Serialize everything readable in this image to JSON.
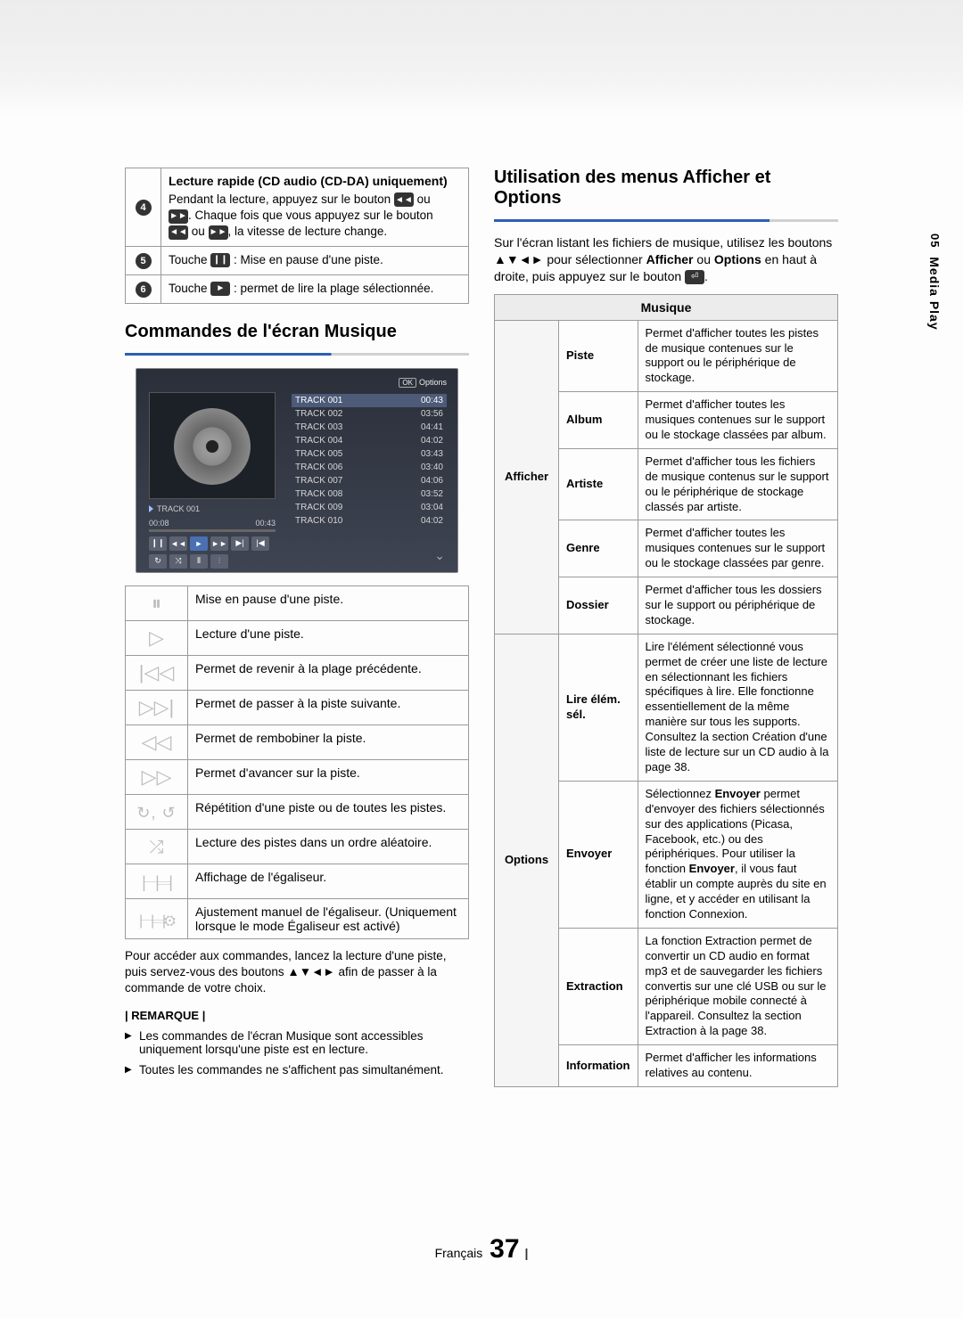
{
  "side": {
    "num": "05",
    "txt": "Media Play"
  },
  "top_table": {
    "r4": {
      "title": "Lecture rapide (CD audio (CD-DA) uniquement)",
      "l1a": "Pendant la lecture, appuyez sur le bouton ",
      "l1b": " ou ",
      "l2a": ". Chaque fois que vous appuyez sur le bouton ",
      "l3a": " ou ",
      "l3b": ", la vitesse de lecture change."
    },
    "r5": {
      "a": "Touche ",
      "b": " : Mise en pause d'une piste."
    },
    "r6": {
      "a": "Touche ",
      "b": " : permet de lire la plage sélectionnée."
    }
  },
  "h_left": "Commandes de l'écran Musique",
  "player": {
    "options": "Options",
    "now": "TRACK 001",
    "t_cur": "00:08",
    "t_tot": "00:43",
    "tracks": [
      {
        "n": "TRACK 001",
        "d": "00:43"
      },
      {
        "n": "TRACK 002",
        "d": "03:56"
      },
      {
        "n": "TRACK 003",
        "d": "04:41"
      },
      {
        "n": "TRACK 004",
        "d": "04:02"
      },
      {
        "n": "TRACK 005",
        "d": "03:43"
      },
      {
        "n": "TRACK 006",
        "d": "03:40"
      },
      {
        "n": "TRACK 007",
        "d": "04:06"
      },
      {
        "n": "TRACK 008",
        "d": "03:52"
      },
      {
        "n": "TRACK 009",
        "d": "03:04"
      },
      {
        "n": "TRACK 010",
        "d": "04:02"
      }
    ]
  },
  "ctrl_table": [
    {
      "icon": "⦀",
      "desc": "Mise en pause d'une piste."
    },
    {
      "icon": "▷",
      "desc": "Lecture d'une piste."
    },
    {
      "icon": "⦉⃒◁",
      "raw": "|◁◁",
      "desc": "Permet de revenir à la plage précédente."
    },
    {
      "icon": "▷▷|",
      "desc": "Permet de passer à la piste suivante."
    },
    {
      "icon": "◁◁",
      "desc": "Permet de rembobiner la piste."
    },
    {
      "icon": "▷▷",
      "desc": "Permet d'avancer sur la piste."
    },
    {
      "icon": "↻, ↺",
      "desc": "Répétition d'une piste ou de toutes les pistes."
    },
    {
      "icon": "⤨",
      "desc": "Lecture des pistes dans un ordre aléatoire."
    },
    {
      "icon": "⫴⫶",
      "desc": "Affichage de l'égaliseur."
    },
    {
      "icon": "⫴⫶⚙",
      "desc": "Ajustement manuel de l'égaliseur. (Uniquement lorsque le mode Égaliseur est activé)"
    }
  ],
  "below_ctrl": "Pour accéder aux commandes, lancez la lecture d'une piste, puis servez-vous des boutons ▲▼◄► afin de passer à la commande de votre choix.",
  "remarque": "| REMARQUE |",
  "notes": [
    "Les commandes de l'écran Musique sont accessibles uniquement lorsqu'une piste est en lecture.",
    "Toutes les commandes ne s'affichent pas simultanément."
  ],
  "h_right": "Utilisation des menus Afficher et Options",
  "intro": {
    "a": "Sur l'écran listant les fichiers de musique, utilisez les boutons ▲▼◄► pour sélectionner ",
    "b": "Afficher",
    "c": " ou ",
    "d": "Options",
    "e": " en haut à droite, puis appuyez sur le bouton "
  },
  "menu": {
    "header": "Musique",
    "afficher": {
      "label": "Afficher",
      "rows": [
        {
          "n": "Piste",
          "d": "Permet d'afficher toutes les pistes de musique contenues sur le support ou le périphérique de stockage."
        },
        {
          "n": "Album",
          "d": "Permet d'afficher toutes les musiques contenues sur le support ou le stockage classées par album."
        },
        {
          "n": "Artiste",
          "d": "Permet d'afficher tous les fichiers de musique contenus sur le support ou le périphérique de stockage classés par artiste."
        },
        {
          "n": "Genre",
          "d": "Permet d'afficher toutes les musiques contenues sur le support ou le stockage classées par genre."
        },
        {
          "n": "Dossier",
          "d": "Permet d'afficher tous les dossiers sur le support ou périphérique de stockage."
        }
      ]
    },
    "options": {
      "label": "Options",
      "rows": [
        {
          "n": "Lire élém. sél.",
          "d": "Lire l'élément sélectionné vous permet de créer une liste de lecture en sélectionnant les fichiers spécifiques à lire. Elle fonctionne essentiellement de la même manière sur tous les supports. Consultez la section Création d'une liste de lecture sur un CD audio à la page 38."
        },
        {
          "n": "Envoyer",
          "d": "Sélectionnez Envoyer permet d'envoyer des fichiers sélectionnés sur des applications (Picasa, Facebook, etc.) ou des périphériques. Pour utiliser la fonction Envoyer, il vous faut établir un compte auprès du site en ligne, et y accéder en utilisant la fonction Connexion.",
          "bold1": "Envoyer",
          "bold2": "Envoyer"
        },
        {
          "n": "Extraction",
          "d": "La fonction Extraction permet de convertir un CD audio en format mp3 et de sauvegarder les fichiers convertis sur une clé USB ou sur le périphérique mobile connecté à l'appareil. Consultez la section Extraction à la page 38."
        },
        {
          "n": "Information",
          "d": "Permet d'afficher les informations relatives au contenu."
        }
      ]
    }
  },
  "footer": {
    "lang": "Français",
    "pg": "37"
  }
}
